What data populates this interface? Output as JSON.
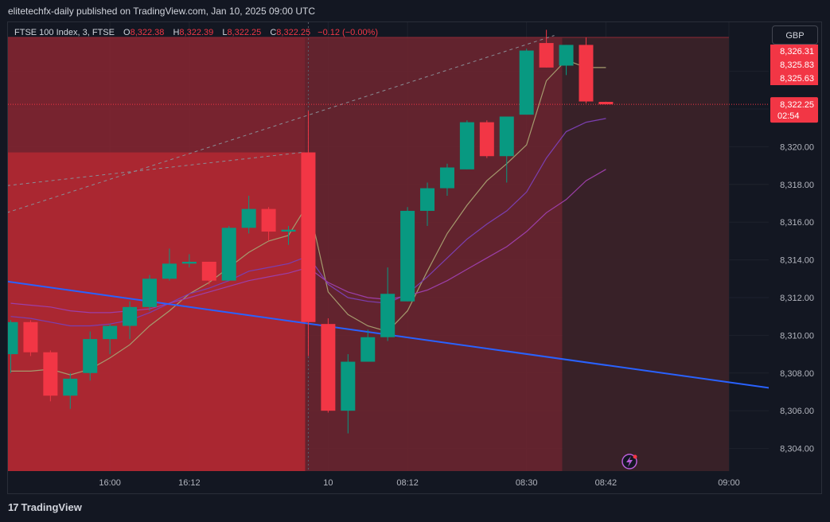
{
  "header": {
    "published_text": "elitetechfx-daily published on TradingView.com, Jan 10, 2025 09:00 UTC"
  },
  "legend": {
    "symbol": "FTSE 100 Index, 3, FTSE",
    "o_label": "O",
    "o_value": "8,322.38",
    "h_label": "H",
    "h_value": "8,322.39",
    "l_label": "L",
    "l_value": "8,322.25",
    "c_label": "C",
    "c_value": "8,322.25",
    "change": "−0.12 (−0.00%)"
  },
  "currency_button": "GBP",
  "footer": {
    "brand": "TradingView"
  },
  "price_tags": {
    "t1": "8,326.31",
    "t2": "8,325.83",
    "t3": "8,325.63",
    "last_price": "8,322.25",
    "countdown": "02:54"
  },
  "colors": {
    "up": "#089981",
    "down": "#f23645",
    "trendline": "#2962ff",
    "zone_left": "#b22833",
    "zone_mid": "#6b2530",
    "zone_right": "#3a2229",
    "ma_fast": "#a59a6e",
    "ma_mid": "#7b3fb0",
    "ma_slow": "#9c3fa8"
  },
  "chart_data": {
    "type": "candlestick",
    "symbol": "FTSE 100 Index",
    "interval": "3",
    "exchange": "FTSE",
    "currency": "GBP",
    "ylim": [
      8302.8,
      8326.6
    ],
    "y_ticks": [
      "8,304.00",
      "8,306.00",
      "8,308.00",
      "8,310.00",
      "8,312.00",
      "8,314.00",
      "8,316.00",
      "8,318.00",
      "8,320.00",
      "8,322.00",
      "8,324.00"
    ],
    "y_tick_values": [
      8304,
      8306,
      8308,
      8310,
      8312,
      8314,
      8316,
      8318,
      8320,
      8322,
      8324
    ],
    "x_ticks": [
      "16:00",
      "16:12",
      "10",
      "08:12",
      "08:30",
      "08:42",
      "09:00"
    ],
    "x_tick_index": [
      5,
      9,
      16,
      20,
      26,
      30,
      36.2
    ],
    "candles": [
      {
        "o": 8309.0,
        "h": 8310.8,
        "l": 8308.0,
        "c": 8310.7
      },
      {
        "o": 8310.7,
        "h": 8310.8,
        "l": 8308.9,
        "c": 8309.1
      },
      {
        "o": 8309.1,
        "h": 8309.2,
        "l": 8306.5,
        "c": 8306.8
      },
      {
        "o": 8306.8,
        "h": 8308.0,
        "l": 8306.1,
        "c": 8307.7
      },
      {
        "o": 8308.0,
        "h": 8310.2,
        "l": 8307.6,
        "c": 8309.8
      },
      {
        "o": 8309.8,
        "h": 8310.6,
        "l": 8309.0,
        "c": 8310.5
      },
      {
        "o": 8310.5,
        "h": 8311.8,
        "l": 8309.8,
        "c": 8311.5
      },
      {
        "o": 8311.5,
        "h": 8313.2,
        "l": 8311.3,
        "c": 8313.0
      },
      {
        "o": 8313.0,
        "h": 8314.6,
        "l": 8312.9,
        "c": 8313.8
      },
      {
        "o": 8313.8,
        "h": 8314.3,
        "l": 8313.6,
        "c": 8313.9
      },
      {
        "o": 8313.9,
        "h": 8313.9,
        "l": 8312.7,
        "c": 8312.9
      },
      {
        "o": 8312.9,
        "h": 8315.8,
        "l": 8312.9,
        "c": 8315.7
      },
      {
        "o": 8315.7,
        "h": 8317.4,
        "l": 8315.4,
        "c": 8316.7
      },
      {
        "o": 8316.7,
        "h": 8316.8,
        "l": 8315.0,
        "c": 8315.5
      },
      {
        "o": 8315.5,
        "h": 8315.8,
        "l": 8314.8,
        "c": 8315.6
      },
      {
        "o": 8319.7,
        "h": 8321.9,
        "l": 8308.9,
        "c": 8310.7
      },
      {
        "o": 8310.6,
        "h": 8310.9,
        "l": 8305.9,
        "c": 8306.0
      },
      {
        "o": 8306.0,
        "h": 8309.0,
        "l": 8304.8,
        "c": 8308.6
      },
      {
        "o": 8308.6,
        "h": 8310.3,
        "l": 8308.6,
        "c": 8309.9
      },
      {
        "o": 8309.9,
        "h": 8313.6,
        "l": 8309.7,
        "c": 8312.2
      },
      {
        "o": 8311.8,
        "h": 8316.8,
        "l": 8311.8,
        "c": 8316.6
      },
      {
        "o": 8316.6,
        "h": 8318.1,
        "l": 8315.8,
        "c": 8317.8
      },
      {
        "o": 8317.8,
        "h": 8319.1,
        "l": 8317.4,
        "c": 8318.9
      },
      {
        "o": 8318.8,
        "h": 8321.4,
        "l": 8318.8,
        "c": 8321.3
      },
      {
        "o": 8321.3,
        "h": 8321.4,
        "l": 8319.4,
        "c": 8319.5
      },
      {
        "o": 8319.5,
        "h": 8321.6,
        "l": 8318.1,
        "c": 8321.6
      },
      {
        "o": 8321.7,
        "h": 8325.2,
        "l": 8321.7,
        "c": 8325.1
      },
      {
        "o": 8325.5,
        "h": 8326.2,
        "l": 8324.2,
        "c": 8324.2
      },
      {
        "o": 8324.3,
        "h": 8325.4,
        "l": 8323.8,
        "c": 8325.4
      },
      {
        "o": 8325.4,
        "h": 8325.8,
        "l": 8322.3,
        "c": 8322.4
      },
      {
        "o": 8322.38,
        "h": 8322.39,
        "l": 8322.25,
        "c": 8322.25
      }
    ],
    "moving_averages": [
      {
        "color": "#a59a6e",
        "values": [
          8308.1,
          8308.1,
          8308.2,
          8307.9,
          8308.2,
          8308.8,
          8309.5,
          8310.5,
          8311.3,
          8312.2,
          8312.8,
          8313.6,
          8314.4,
          8315.0,
          8315.3,
          8317.0,
          8312.3,
          8311.1,
          8310.5,
          8310.2,
          8311.3,
          8313.4,
          8315.4,
          8316.9,
          8318.2,
          8319.1,
          8320.1,
          8323.5,
          8324.6,
          8324.2,
          8324.2
        ]
      },
      {
        "color": "#7b3fb0",
        "values": [
          8311.0,
          8310.9,
          8310.7,
          8310.5,
          8310.5,
          8310.6,
          8310.8,
          8311.2,
          8311.7,
          8312.2,
          8312.5,
          8312.9,
          8313.4,
          8313.6,
          8313.8,
          8314.2,
          8312.7,
          8312.0,
          8311.8,
          8311.7,
          8312.2,
          8313.1,
          8314.1,
          8315.1,
          8315.9,
          8316.6,
          8317.6,
          8319.4,
          8320.8,
          8321.3,
          8321.5
        ]
      },
      {
        "color": "#9c3fa8",
        "values": [
          8311.7,
          8311.6,
          8311.5,
          8311.3,
          8311.2,
          8311.2,
          8311.3,
          8311.4,
          8311.7,
          8312.0,
          8312.3,
          8312.6,
          8312.9,
          8313.1,
          8313.3,
          8313.6,
          8312.8,
          8312.3,
          8312.0,
          8311.9,
          8312.1,
          8312.4,
          8312.9,
          8313.5,
          8314.1,
          8314.7,
          8315.5,
          8316.5,
          8317.2,
          8318.2,
          8318.8
        ]
      }
    ],
    "trendline": {
      "from": {
        "i": -0.5,
        "y": 8312.9
      },
      "to": {
        "i": 38.3,
        "y": 8307.2
      }
    },
    "dashed_lines": [
      {
        "from": {
          "i": -0.5,
          "y": 8316.4
        },
        "to": {
          "i": 27.4,
          "y": 8325.9
        }
      },
      {
        "from": {
          "i": -0.5,
          "y": 8317.9
        },
        "to": {
          "i": 14.7,
          "y": 8319.7
        }
      }
    ],
    "zones": [
      {
        "i0": -0.5,
        "i1": 14.85,
        "y0": 8302.5,
        "y1": 8319.7,
        "color": "#b22833",
        "opacity": 0.95
      },
      {
        "i0": -0.5,
        "i1": 14.85,
        "y0": 8319.7,
        "y1": 8325.8,
        "color": "#8a2631",
        "opacity": 0.85
      },
      {
        "i0": 14.85,
        "i1": 27.8,
        "y0": 8302.5,
        "y1": 8325.8,
        "color": "#6b2530",
        "opacity": 0.9
      },
      {
        "i0": 27.8,
        "i1": 36.2,
        "y0": 8302.5,
        "y1": 8325.8,
        "color": "#3a2229",
        "opacity": 0.95
      }
    ],
    "last_price_line": 8322.25
  }
}
